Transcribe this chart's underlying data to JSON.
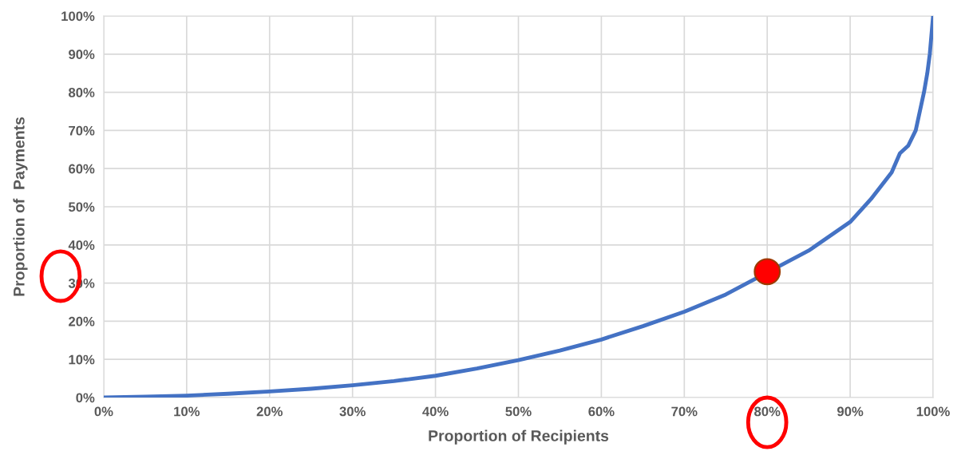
{
  "chart_data": {
    "type": "line",
    "xlabel": "Proportion of Recipients",
    "ylabel": "Proportion of  Payments",
    "xlim": [
      0,
      100
    ],
    "ylim": [
      0,
      100
    ],
    "xticks": [
      {
        "value": 0,
        "label": "0%"
      },
      {
        "value": 10,
        "label": "10%"
      },
      {
        "value": 20,
        "label": "20%"
      },
      {
        "value": 30,
        "label": "30%"
      },
      {
        "value": 40,
        "label": "40%"
      },
      {
        "value": 50,
        "label": "50%"
      },
      {
        "value": 60,
        "label": "60%"
      },
      {
        "value": 70,
        "label": "70%"
      },
      {
        "value": 80,
        "label": "80%"
      },
      {
        "value": 90,
        "label": "90%"
      },
      {
        "value": 100,
        "label": "100%"
      }
    ],
    "yticks": [
      {
        "value": 0,
        "label": "0%"
      },
      {
        "value": 10,
        "label": "10%"
      },
      {
        "value": 20,
        "label": "20%"
      },
      {
        "value": 30,
        "label": "30%"
      },
      {
        "value": 40,
        "label": "40%"
      },
      {
        "value": 50,
        "label": "50%"
      },
      {
        "value": 60,
        "label": "60%"
      },
      {
        "value": 70,
        "label": "70%"
      },
      {
        "value": 80,
        "label": "80%"
      },
      {
        "value": 90,
        "label": "90%"
      },
      {
        "value": 100,
        "label": "100%"
      }
    ],
    "grid": true,
    "series": [
      {
        "color": "#4472c4",
        "marker": "none",
        "x": [
          0,
          5,
          10,
          15,
          20,
          25,
          30,
          35,
          40,
          45,
          50,
          55,
          60,
          65,
          70,
          75,
          80,
          85,
          90,
          92.5,
          95,
          96,
          97,
          97.9,
          98.9,
          99.3,
          99.6,
          100
        ],
        "values": [
          0,
          0.2,
          0.5,
          1.0,
          1.6,
          2.3,
          3.2,
          4.3,
          5.7,
          7.6,
          9.8,
          12.3,
          15.2,
          18.7,
          22.5,
          27,
          null,
          38.5,
          46,
          52,
          59,
          64,
          66,
          70,
          80,
          85,
          90,
          100
        ]
      },
      {
        "type": "scatter",
        "color": "#ff0000",
        "marker": "circle",
        "x": [
          80
        ],
        "values": [
          33
        ]
      }
    ]
  }
}
